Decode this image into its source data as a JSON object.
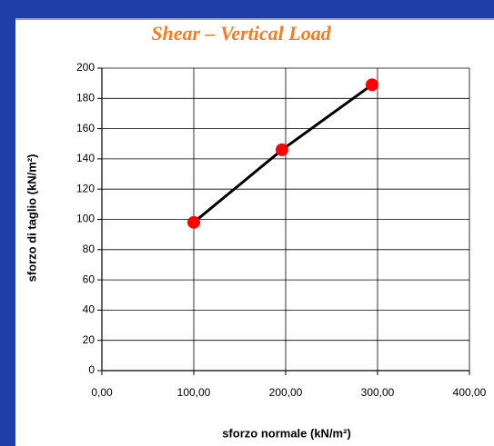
{
  "chart_data": {
    "type": "scatter",
    "title": "Shear – Vertical Load",
    "x_label": "sforzo normale (kN/m²)",
    "y_label": "sforzo di taglio (kN/m²)",
    "series": [
      {
        "name": "",
        "color": "#ff0000",
        "line_color": "#000000",
        "x": [
          100,
          196,
          294
        ],
        "values": [
          98,
          146,
          189
        ]
      }
    ],
    "xlim": [
      0,
      400
    ],
    "xticks": [
      {
        "value": 0,
        "label": "0,00"
      },
      {
        "value": 100,
        "label": "100,00"
      },
      {
        "value": 200,
        "label": "200,00"
      },
      {
        "value": 300,
        "label": "300,00"
      },
      {
        "value": 400,
        "label": "400,00"
      }
    ],
    "ylim": [
      0,
      200
    ],
    "yticks": [
      0,
      20,
      40,
      60,
      80,
      100,
      120,
      140,
      160,
      180,
      200
    ],
    "grid": true
  }
}
